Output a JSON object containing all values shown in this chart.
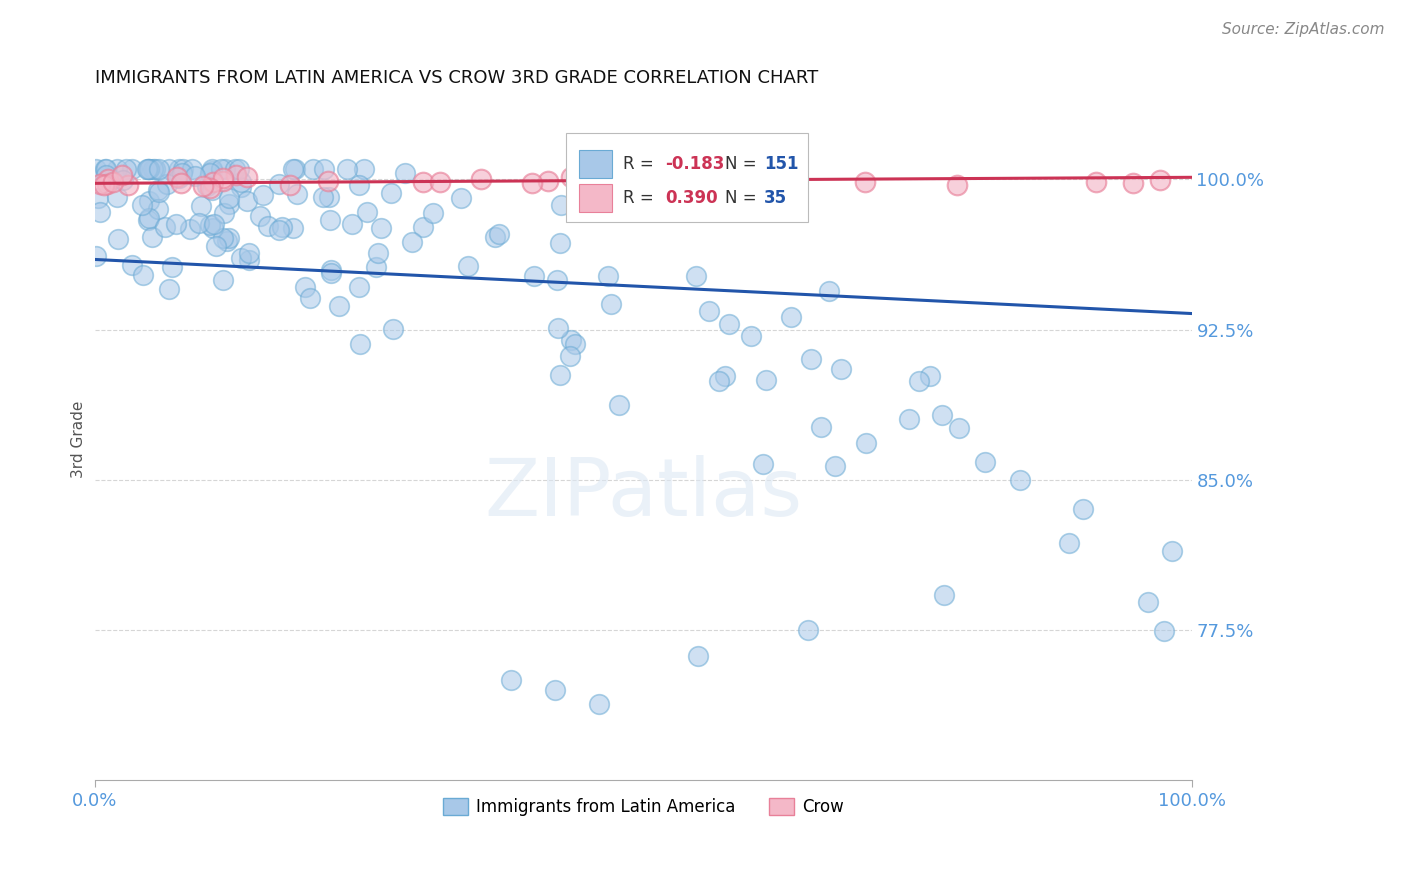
{
  "title": "IMMIGRANTS FROM LATIN AMERICA VS CROW 3RD GRADE CORRELATION CHART",
  "source_text": "Source: ZipAtlas.com",
  "ylabel": "3rd Grade",
  "blue_R": -0.183,
  "blue_N": 151,
  "pink_R": 0.39,
  "pink_N": 35,
  "blue_color": "#a8c8e8",
  "blue_edge_color": "#6aaad4",
  "pink_color": "#f4b8c8",
  "pink_edge_color": "#e88099",
  "blue_line_color": "#2255aa",
  "pink_line_color": "#cc3355",
  "legend_blue_label": "Immigrants from Latin America",
  "legend_pink_label": "Crow",
  "watermark": "ZIPatlas",
  "background_color": "#ffffff",
  "grid_color": "#cccccc",
  "title_color": "#111111",
  "axis_label_color": "#5599dd",
  "title_fontsize": 13,
  "source_fontsize": 11,
  "ytick_values": [
    0.775,
    0.85,
    0.925,
    1.0
  ],
  "ytick_labels": [
    "77.5%",
    "85.0%",
    "92.5%",
    "100.0%"
  ],
  "grid_yticks": [
    0.775,
    0.85,
    0.925,
    1.0
  ],
  "ylim_min": 0.7,
  "ylim_max": 1.04,
  "xlim_min": 0.0,
  "xlim_max": 1.0,
  "legend_r_color": "#cc3355",
  "legend_n_color": "#2255aa",
  "legend_text_color": "#333333"
}
